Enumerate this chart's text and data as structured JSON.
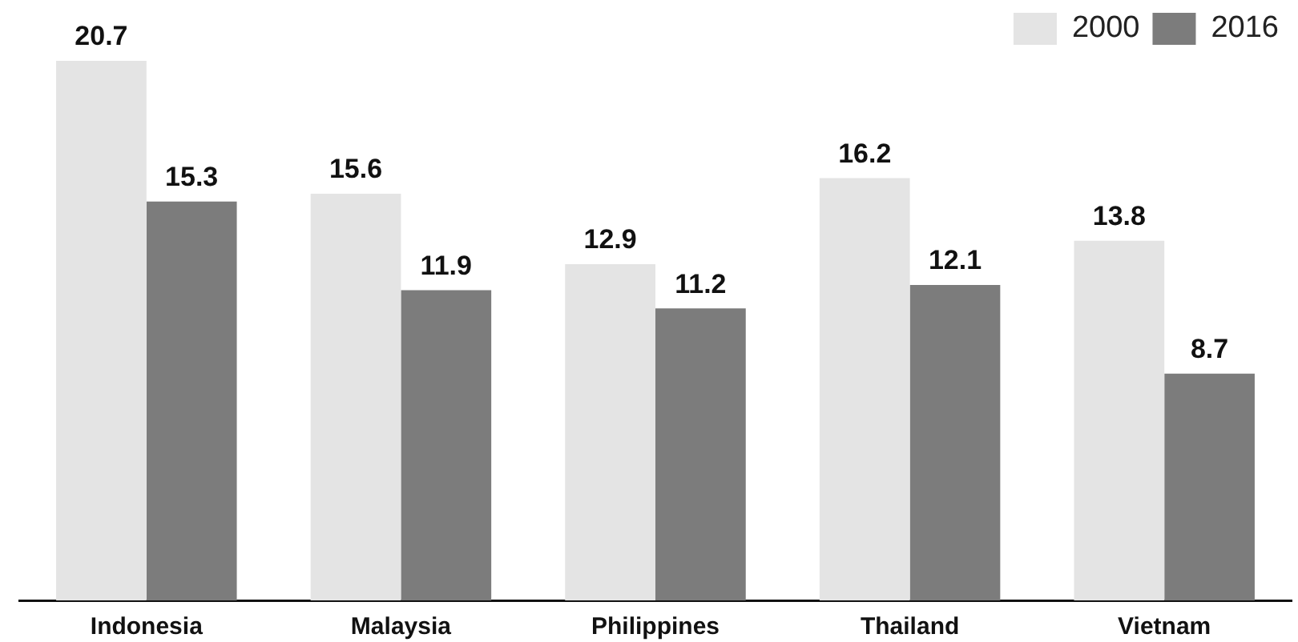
{
  "chart_data": {
    "type": "bar",
    "categories": [
      "Indonesia",
      "Malaysia",
      "Philippines",
      "Thailand",
      "Vietnam"
    ],
    "series": [
      {
        "name": "2000",
        "color": "#e4e4e4",
        "values": [
          20.7,
          15.6,
          12.9,
          16.2,
          13.8
        ]
      },
      {
        "name": "2016",
        "color": "#7c7c7c",
        "values": [
          15.3,
          11.9,
          11.2,
          12.1,
          8.7
        ]
      }
    ],
    "tick_labels": "x",
    "data_labels": true,
    "legend": "top right",
    "grid": false
  }
}
